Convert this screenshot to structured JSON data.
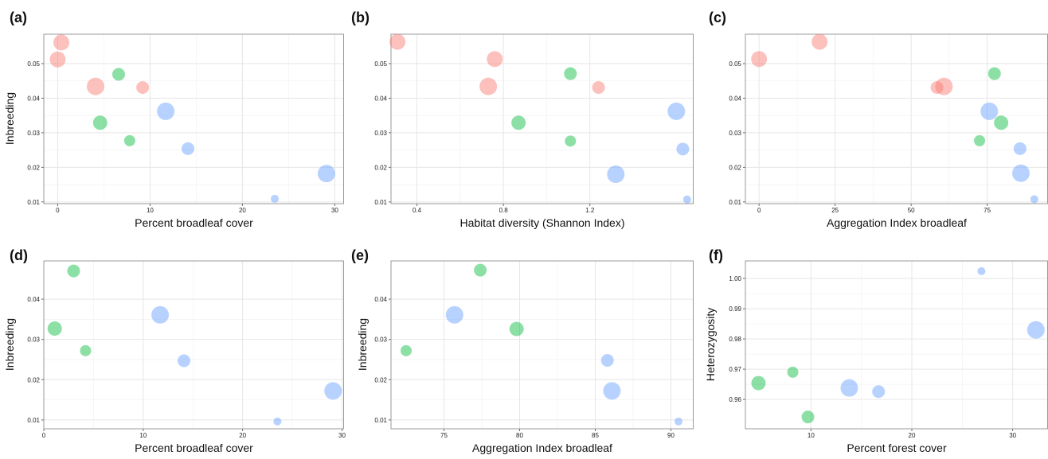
{
  "colors": {
    "red": "#F8766D",
    "green": "#00BA38",
    "blue": "#619CFF"
  },
  "chart_data": [
    {
      "type": "scatter",
      "panel_label": "(a)",
      "xlabel": "Percent broadleaf cover",
      "ylabel": "Inbreeding",
      "xlim": [
        -1.5,
        31
      ],
      "ylim": [
        0.0095,
        0.0585
      ],
      "xticks": [
        0,
        10,
        20,
        30
      ],
      "yticks": [
        0.01,
        0.02,
        0.03,
        0.04,
        0.05
      ],
      "points": [
        {
          "x": 0.4,
          "y": 0.0561,
          "color": "red",
          "size": 10
        },
        {
          "x": 0.0,
          "y": 0.0512,
          "color": "red",
          "size": 10
        },
        {
          "x": 4.1,
          "y": 0.0434,
          "color": "red",
          "size": 11
        },
        {
          "x": 9.2,
          "y": 0.0431,
          "color": "red",
          "size": 8
        },
        {
          "x": 6.6,
          "y": 0.0469,
          "color": "green",
          "size": 8
        },
        {
          "x": 4.6,
          "y": 0.0329,
          "color": "green",
          "size": 9
        },
        {
          "x": 7.8,
          "y": 0.0277,
          "color": "green",
          "size": 7
        },
        {
          "x": 11.7,
          "y": 0.0362,
          "color": "blue",
          "size": 11
        },
        {
          "x": 14.1,
          "y": 0.0254,
          "color": "blue",
          "size": 8
        },
        {
          "x": 29.1,
          "y": 0.0182,
          "color": "blue",
          "size": 11
        },
        {
          "x": 23.5,
          "y": 0.0109,
          "color": "blue",
          "size": 5
        }
      ]
    },
    {
      "type": "scatter",
      "panel_label": "(b)",
      "xlabel": "Habitat diversity (Shannon Index)",
      "ylabel": "",
      "xlim": [
        0.28,
        1.68
      ],
      "ylim": [
        0.0095,
        0.0585
      ],
      "xticks": [
        0.4,
        0.8,
        1.2
      ],
      "yticks": [
        0.01,
        0.02,
        0.03,
        0.04,
        0.05
      ],
      "points": [
        {
          "x": 0.31,
          "y": 0.0563,
          "color": "red",
          "size": 10
        },
        {
          "x": 0.76,
          "y": 0.0513,
          "color": "red",
          "size": 10
        },
        {
          "x": 0.73,
          "y": 0.0434,
          "color": "red",
          "size": 11
        },
        {
          "x": 1.24,
          "y": 0.0431,
          "color": "red",
          "size": 8
        },
        {
          "x": 1.11,
          "y": 0.0471,
          "color": "green",
          "size": 8
        },
        {
          "x": 0.87,
          "y": 0.0329,
          "color": "green",
          "size": 9
        },
        {
          "x": 1.11,
          "y": 0.0276,
          "color": "green",
          "size": 7
        },
        {
          "x": 1.6,
          "y": 0.0362,
          "color": "blue",
          "size": 11
        },
        {
          "x": 1.63,
          "y": 0.0253,
          "color": "blue",
          "size": 8
        },
        {
          "x": 1.32,
          "y": 0.018,
          "color": "blue",
          "size": 11
        },
        {
          "x": 1.65,
          "y": 0.0107,
          "color": "blue",
          "size": 5
        }
      ]
    },
    {
      "type": "scatter",
      "panel_label": "(c)",
      "xlabel": "Aggregation Index broadleaf",
      "ylabel": "",
      "xlim": [
        -4.5,
        95
      ],
      "ylim": [
        0.0095,
        0.0585
      ],
      "xticks": [
        0,
        25,
        50,
        75
      ],
      "yticks": [
        0.01,
        0.02,
        0.03,
        0.04,
        0.05
      ],
      "points": [
        {
          "x": 0.0,
          "y": 0.0513,
          "color": "red",
          "size": 10
        },
        {
          "x": 19.9,
          "y": 0.0563,
          "color": "red",
          "size": 10
        },
        {
          "x": 60.8,
          "y": 0.0434,
          "color": "red",
          "size": 11
        },
        {
          "x": 58.5,
          "y": 0.0431,
          "color": "red",
          "size": 8
        },
        {
          "x": 77.4,
          "y": 0.0471,
          "color": "green",
          "size": 8
        },
        {
          "x": 79.6,
          "y": 0.0329,
          "color": "green",
          "size": 9
        },
        {
          "x": 72.5,
          "y": 0.0277,
          "color": "green",
          "size": 7
        },
        {
          "x": 75.7,
          "y": 0.0362,
          "color": "blue",
          "size": 11
        },
        {
          "x": 85.8,
          "y": 0.0254,
          "color": "blue",
          "size": 8
        },
        {
          "x": 86.1,
          "y": 0.0183,
          "color": "blue",
          "size": 11
        },
        {
          "x": 90.5,
          "y": 0.0108,
          "color": "blue",
          "size": 5
        }
      ]
    },
    {
      "type": "scatter",
      "panel_label": "(d)",
      "xlabel": "Percent broadleaf cover",
      "ylabel": "Inbreeding",
      "xlim": [
        0,
        30.2
      ],
      "ylim": [
        0.0078,
        0.0495
      ],
      "xticks": [
        0,
        10,
        20,
        30
      ],
      "yticks": [
        0.01,
        0.02,
        0.03,
        0.04
      ],
      "points": [
        {
          "x": 3.0,
          "y": 0.047,
          "color": "green",
          "size": 8
        },
        {
          "x": 1.1,
          "y": 0.0327,
          "color": "green",
          "size": 9
        },
        {
          "x": 4.2,
          "y": 0.0272,
          "color": "green",
          "size": 7
        },
        {
          "x": 11.7,
          "y": 0.0361,
          "color": "blue",
          "size": 11
        },
        {
          "x": 14.1,
          "y": 0.0247,
          "color": "blue",
          "size": 8
        },
        {
          "x": 29.1,
          "y": 0.0172,
          "color": "blue",
          "size": 11
        },
        {
          "x": 23.5,
          "y": 0.0096,
          "color": "blue",
          "size": 5
        }
      ]
    },
    {
      "type": "scatter",
      "panel_label": "(e)",
      "xlabel": "Aggregation Index broadleaf",
      "ylabel": "Inbreeding",
      "xlim": [
        71.5,
        91.5
      ],
      "ylim": [
        0.0078,
        0.0495
      ],
      "xticks": [
        75,
        80,
        85,
        90
      ],
      "yticks": [
        0.01,
        0.02,
        0.03,
        0.04
      ],
      "points": [
        {
          "x": 77.4,
          "y": 0.0472,
          "color": "green",
          "size": 8
        },
        {
          "x": 79.8,
          "y": 0.0326,
          "color": "green",
          "size": 9
        },
        {
          "x": 72.5,
          "y": 0.0272,
          "color": "green",
          "size": 7
        },
        {
          "x": 75.7,
          "y": 0.0361,
          "color": "blue",
          "size": 11
        },
        {
          "x": 85.8,
          "y": 0.0248,
          "color": "blue",
          "size": 8
        },
        {
          "x": 86.1,
          "y": 0.0172,
          "color": "blue",
          "size": 11
        },
        {
          "x": 90.5,
          "y": 0.0096,
          "color": "blue",
          "size": 5
        }
      ]
    },
    {
      "type": "scatter",
      "panel_label": "(f)",
      "xlabel": "Percent forest cover",
      "ylabel": "Heterozygosity",
      "xlim": [
        3.5,
        33.5
      ],
      "ylim": [
        0.9503,
        1.0058
      ],
      "xticks": [
        10,
        20,
        30
      ],
      "yticks": [
        0.96,
        0.97,
        0.98,
        0.99,
        1.0
      ],
      "yticklabels": [
        "0.96",
        "0.97",
        "0.98",
        "0.99",
        "1.00"
      ],
      "points": [
        {
          "x": 4.8,
          "y": 0.9654,
          "color": "green",
          "size": 9
        },
        {
          "x": 8.2,
          "y": 0.969,
          "color": "green",
          "size": 7
        },
        {
          "x": 9.7,
          "y": 0.9542,
          "color": "green",
          "size": 8
        },
        {
          "x": 13.8,
          "y": 0.9638,
          "color": "blue",
          "size": 11
        },
        {
          "x": 16.7,
          "y": 0.9626,
          "color": "blue",
          "size": 8
        },
        {
          "x": 26.9,
          "y": 1.0024,
          "color": "blue",
          "size": 5
        },
        {
          "x": 32.3,
          "y": 0.983,
          "color": "blue",
          "size": 11
        }
      ]
    }
  ]
}
